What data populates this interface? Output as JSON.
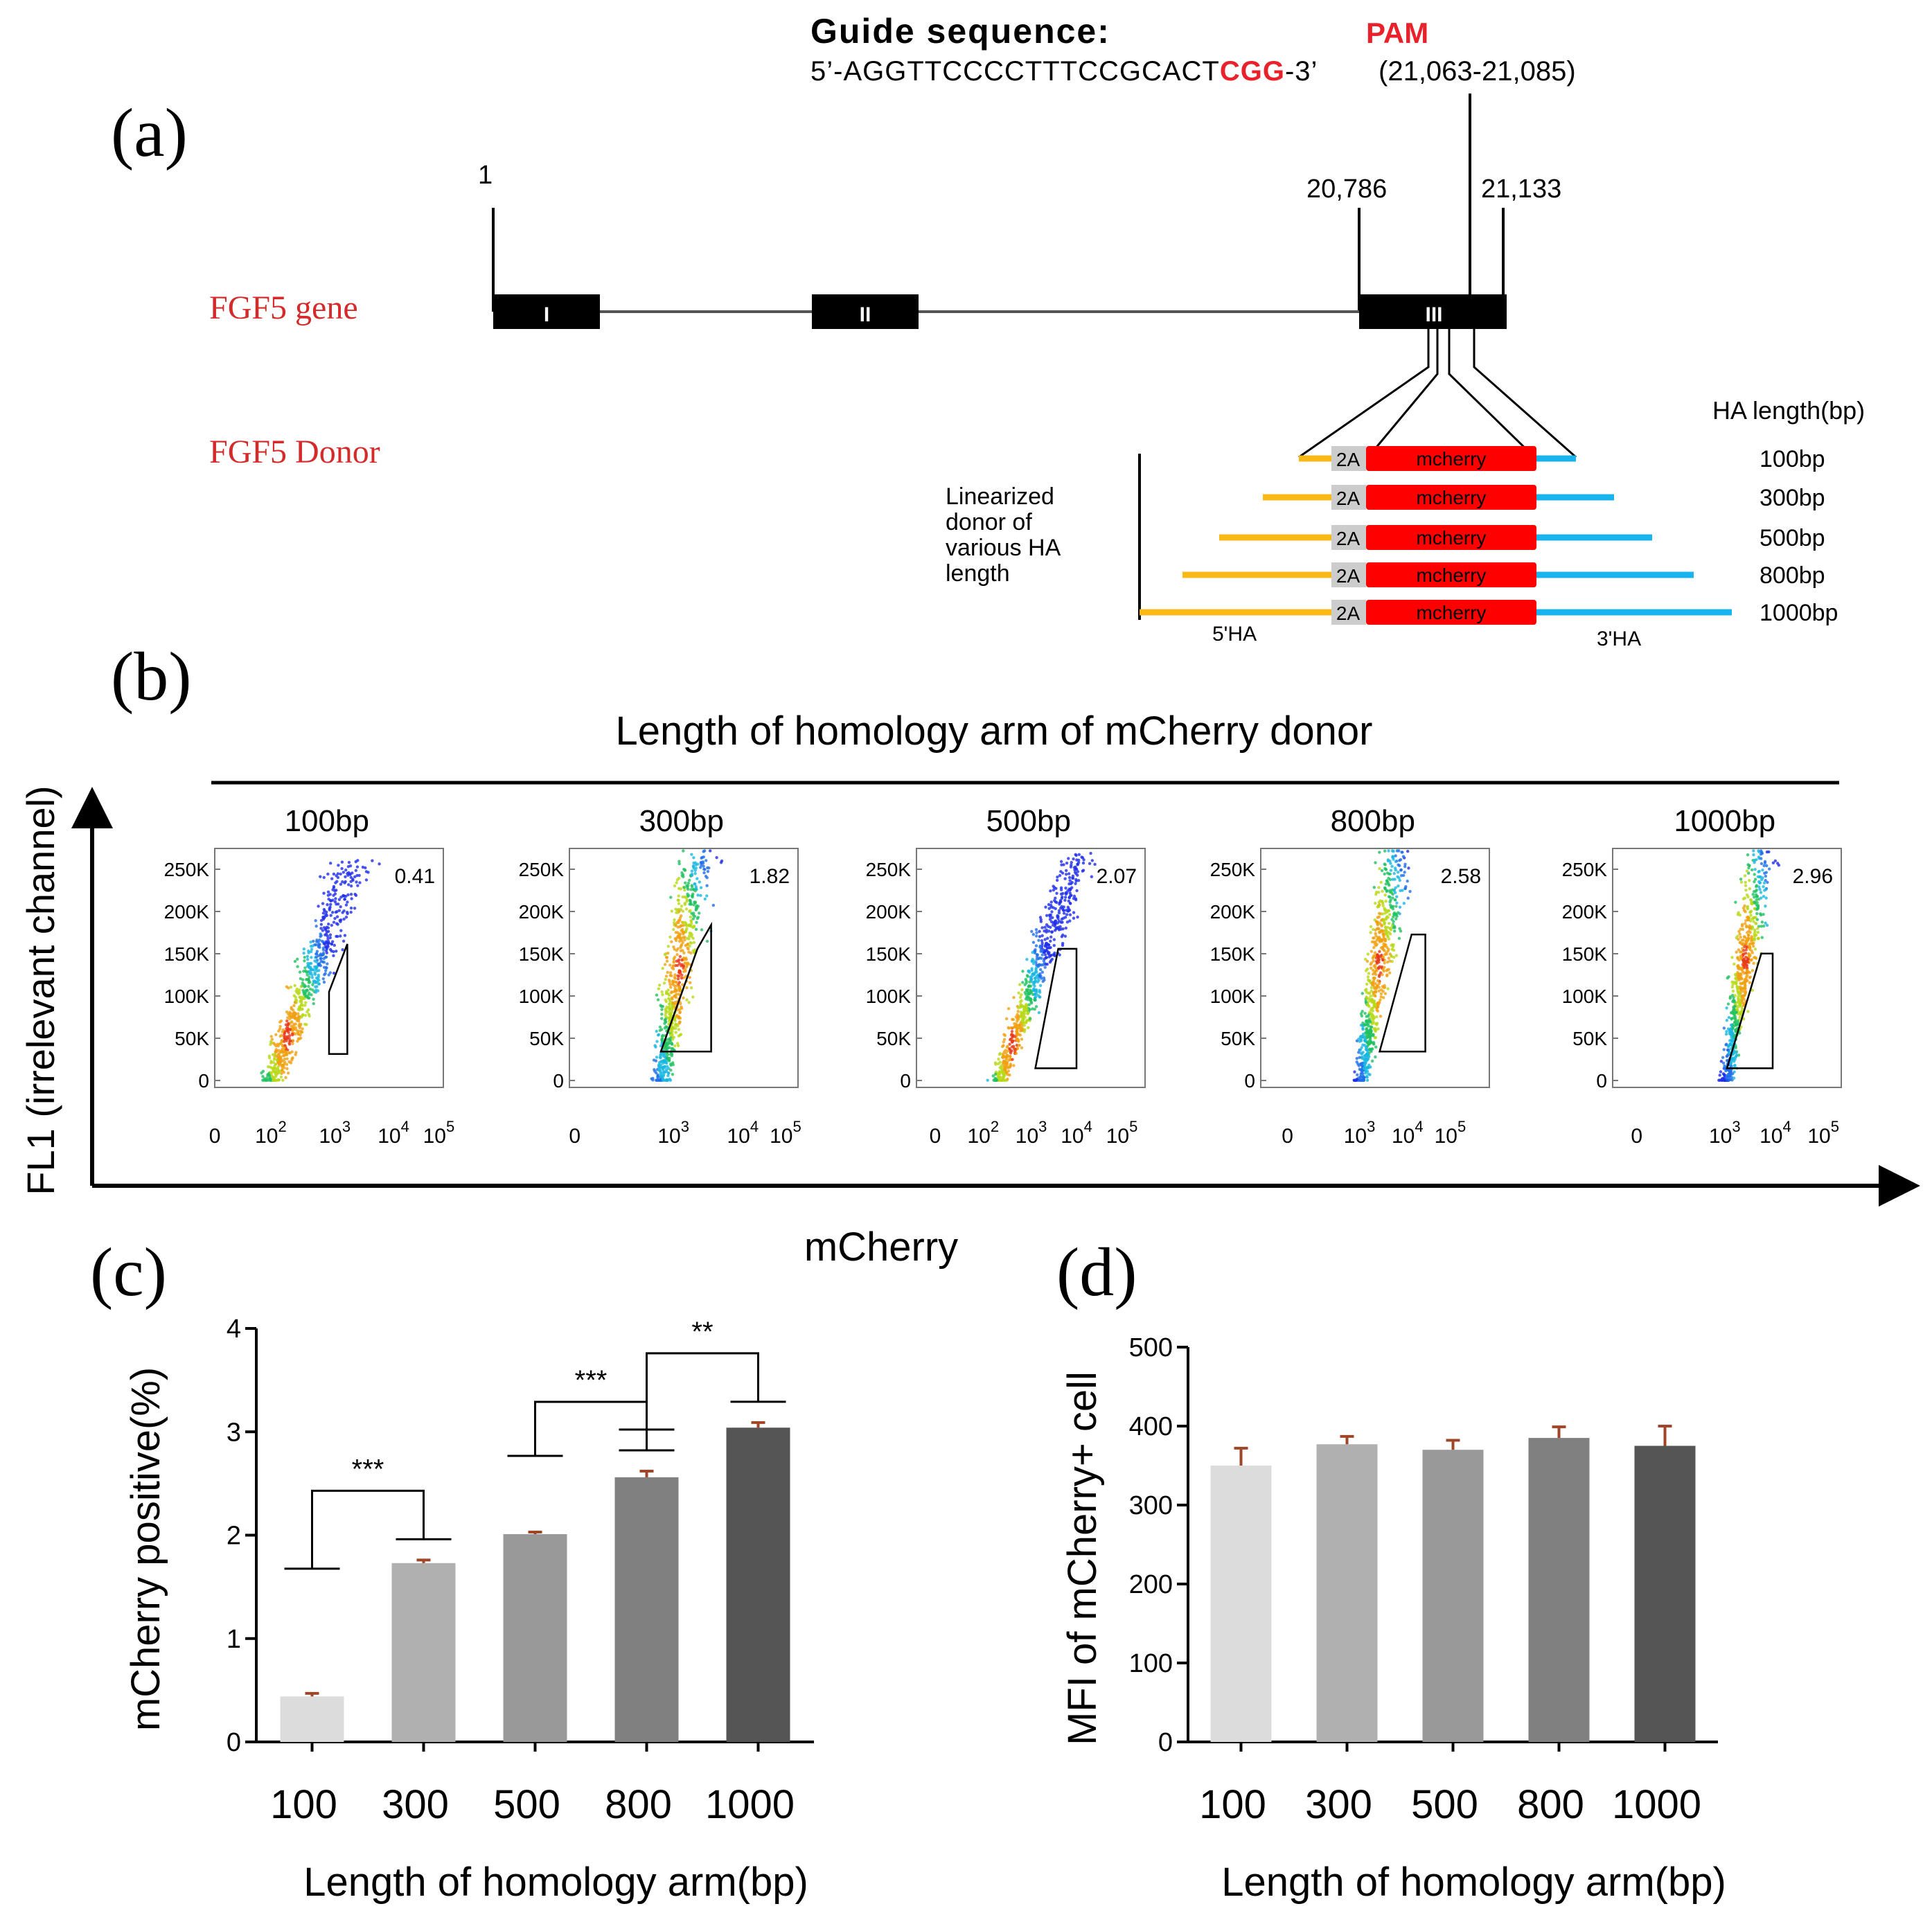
{
  "panels": {
    "a": "(a)",
    "b": "(b)",
    "c": "(c)",
    "d": "(d)"
  },
  "panel_a": {
    "guide_title": "Guide sequence:",
    "pam_label": "PAM",
    "guide_prefix": "5’-AGGTTCCCCTTTCCGCACT",
    "guide_pam": "CGG",
    "guide_suffix": "-3’",
    "guide_range": "(21,063-21,085)",
    "pos_start": "1",
    "pos_exon3_start": "20,786",
    "pos_exon3_end": "21,133",
    "gene_label": "FGF5 gene",
    "donor_label": "FGF5 Donor",
    "exon_labels": [
      "I",
      "II",
      "III"
    ],
    "ha_length_header": "HA length(bp)",
    "linearized_label": [
      "Linearized",
      "donor of",
      "various HA",
      "length"
    ],
    "cassette_2a": "2A",
    "cassette_mcherry": "mcherry",
    "donor_lengths": [
      "100bp",
      "300bp",
      "500bp",
      "800bp",
      "1000bp"
    ],
    "label_5ha": "5'HA",
    "label_3ha": "3'HA",
    "colors": {
      "arm5": "#fbb917",
      "arm3": "#18b4ee",
      "mcherry": "#ff0000",
      "twoA": "#cccccc",
      "pam": "#e8212a",
      "gene_label": "#d42a2a"
    }
  },
  "panel_b": {
    "title": "Length of homology arm of mCherry donor",
    "yaxis_label": "FL1 (irrelevant channel)",
    "xaxis_label": "mCherry",
    "y_ticks": [
      "250K",
      "200K",
      "150K",
      "100K",
      "50K",
      "0"
    ],
    "plots": [
      {
        "label": "100bp",
        "percent": "0.41"
      },
      {
        "label": "300bp",
        "percent": "1.82"
      },
      {
        "label": "500bp",
        "percent": "2.07"
      },
      {
        "label": "800bp",
        "percent": "2.58"
      },
      {
        "label": "1000bp",
        "percent": "2.96"
      }
    ]
  },
  "chart_data": [
    {
      "type": "bar",
      "panel": "c",
      "title": "",
      "xlabel": "Length of homology arm(bp)",
      "ylabel": "mCherry positive(%)",
      "categories": [
        "100",
        "300",
        "500",
        "800",
        "1000"
      ],
      "values": [
        0.44,
        1.73,
        2.01,
        2.56,
        3.04
      ],
      "errors": [
        0.03,
        0.03,
        0.02,
        0.06,
        0.05
      ],
      "ylim": [
        0,
        4
      ],
      "yticks": [
        "0",
        "1",
        "2",
        "3",
        "4"
      ],
      "colors": [
        "#dcdcdc",
        "#b0b0b0",
        "#999999",
        "#808080",
        "#555555"
      ],
      "significance": [
        {
          "from": 0,
          "to": 1,
          "label": "***"
        },
        {
          "from": 2,
          "to": 3,
          "label": "***"
        },
        {
          "from": 3,
          "to": 4,
          "label": "**"
        }
      ]
    },
    {
      "type": "bar",
      "panel": "d",
      "title": "",
      "xlabel": "Length of homology arm(bp)",
      "ylabel": "MFI of mCherry+ cell",
      "categories": [
        "100",
        "300",
        "500",
        "800",
        "1000"
      ],
      "values": [
        350,
        377,
        370,
        385,
        375
      ],
      "errors": [
        22,
        10,
        12,
        14,
        25
      ],
      "ylim": [
        0,
        500
      ],
      "yticks": [
        "0",
        "100",
        "200",
        "300",
        "400",
        "500"
      ],
      "colors": [
        "#dcdcdc",
        "#b0b0b0",
        "#999999",
        "#808080",
        "#555555"
      ]
    }
  ]
}
